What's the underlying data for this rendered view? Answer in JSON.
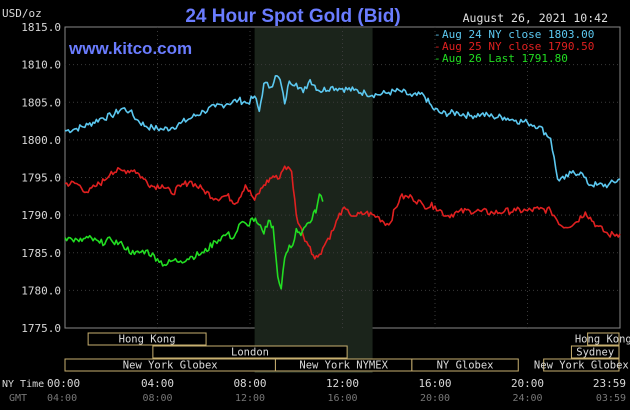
{
  "header": {
    "unit": "USD/oz",
    "title": "24 Hour Spot Gold (Bid)",
    "timestamp": "August 26, 2021 10:42",
    "website": "www.kitco.com"
  },
  "legend": [
    {
      "label": "Aug 24 NY close 1803.00",
      "color": "#5cc8f0"
    },
    {
      "label": "Aug 25 NY close 1790.50",
      "color": "#e02020"
    },
    {
      "label": "Aug 26 Last 1791.80",
      "color": "#22dd22"
    }
  ],
  "axis": {
    "y_ticks": [
      "1815.0",
      "1810.0",
      "1805.0",
      "1800.0",
      "1795.0",
      "1790.0",
      "1785.0",
      "1780.0",
      "1775.0"
    ],
    "x_ticks_ny": [
      "00:00",
      "04:00",
      "08:00",
      "12:00",
      "16:00",
      "20:00",
      "23:59"
    ],
    "x_ticks_gmt": [
      "04:00",
      "08:00",
      "12:00",
      "16:00",
      "20:00",
      "24:00",
      "03:59"
    ],
    "ny_time_label": "NY Time",
    "gmt_label": "GMT"
  },
  "sessions": [
    {
      "label": "Hong Kong",
      "start": 1.0,
      "end": 6.1,
      "row": 0
    },
    {
      "label": "Hong Kong",
      "start": 22.6,
      "end": 26.0,
      "row": 0
    },
    {
      "label": "London",
      "start": 3.8,
      "end": 12.2,
      "row": 1
    },
    {
      "label": "Sydney",
      "start": 21.9,
      "end": 26.0,
      "row": 1
    },
    {
      "label": "New York Globex",
      "start": 0.0,
      "end": 9.1,
      "row": 2
    },
    {
      "label": "New York NYMEX",
      "start": 9.1,
      "end": 15.0,
      "row": 2
    },
    {
      "label": "NY Globex",
      "start": 15.0,
      "end": 19.6,
      "row": 2
    },
    {
      "label": "New York Globex",
      "start": 20.7,
      "end": 26.0,
      "row": 2
    }
  ],
  "chart_data": {
    "type": "line",
    "title": "24 Hour Spot Gold (Bid)",
    "ylabel": "USD/oz",
    "xlabel": "NY Time",
    "xlim": [
      0,
      24
    ],
    "ylim": [
      1775,
      1815
    ],
    "nymex_session_hours": [
      8.2,
      13.3
    ],
    "series": [
      {
        "name": "Aug 24 NY close 1803.00",
        "color": "#5cc8f0",
        "x": [
          0,
          0.5,
          1,
          1.5,
          2,
          2.5,
          2.8,
          3.1,
          3.5,
          3.8,
          4.2,
          4.6,
          5,
          5.5,
          6,
          6.5,
          7,
          7.5,
          7.9,
          8.2,
          8.4,
          8.6,
          8.9,
          9.1,
          9.3,
          9.5,
          9.7,
          10,
          10.3,
          10.6,
          11,
          11.5,
          12,
          12.5,
          13,
          13.5,
          14,
          14.5,
          15,
          15.5,
          15.9,
          16.3,
          17,
          17.5,
          18,
          18.5,
          19,
          19.5,
          20,
          20.5,
          21,
          21.3,
          21.6,
          21.9,
          22.3,
          22.6,
          23,
          23.5,
          24
        ],
        "y": [
          1801.2,
          1801.5,
          1802.0,
          1802.8,
          1803.2,
          1804.2,
          1803.8,
          1802.7,
          1801.8,
          1801.6,
          1801.4,
          1801.6,
          1802.2,
          1803.0,
          1803.8,
          1804.4,
          1804.8,
          1805.3,
          1804.9,
          1805.8,
          1803.8,
          1807.5,
          1807.0,
          1808.5,
          1808.0,
          1804.8,
          1807.8,
          1807.5,
          1806.3,
          1808.0,
          1806.5,
          1807.0,
          1806.8,
          1806.6,
          1806.2,
          1806.0,
          1806.3,
          1806.5,
          1805.8,
          1806.0,
          1804.2,
          1803.5,
          1803.6,
          1803.2,
          1803.4,
          1803.1,
          1803.0,
          1802.6,
          1802.3,
          1801.8,
          1800.2,
          1794.8,
          1794.8,
          1795.6,
          1795.7,
          1794.2,
          1794.0,
          1794.0,
          1794.8
        ]
      },
      {
        "name": "Aug 25 NY close 1790.50",
        "color": "#e02020",
        "x": [
          0,
          0.5,
          1,
          1.3,
          1.7,
          2,
          2.5,
          3,
          3.4,
          3.8,
          4.2,
          4.6,
          5,
          5.4,
          6,
          6.5,
          7,
          7.4,
          7.8,
          8.2,
          8.6,
          9,
          9.2,
          9.5,
          9.8,
          10,
          10.3,
          10.6,
          10.8,
          11,
          11.3,
          11.6,
          11.8,
          12,
          12.3,
          12.6,
          13,
          13.5,
          14,
          14.5,
          15,
          15.5,
          16,
          16.5,
          17,
          17.5,
          18,
          18.5,
          19,
          19.5,
          20,
          20.5,
          21,
          21.5,
          22,
          22.5,
          23,
          23.5,
          24
        ],
        "y": [
          1794.2,
          1794.2,
          1793.0,
          1793.8,
          1794.6,
          1795.8,
          1795.9,
          1796.0,
          1794.8,
          1793.8,
          1794.0,
          1792.9,
          1793.8,
          1794.5,
          1793.3,
          1792.2,
          1792.6,
          1791.6,
          1794.0,
          1792.0,
          1794.0,
          1795.2,
          1794.8,
          1796.5,
          1795.8,
          1790.0,
          1787.3,
          1785.8,
          1784.2,
          1784.8,
          1786.5,
          1788.0,
          1789.6,
          1790.8,
          1790.2,
          1789.9,
          1790.3,
          1789.8,
          1788.7,
          1792.4,
          1792.4,
          1791.3,
          1791.2,
          1789.9,
          1790.4,
          1790.6,
          1790.5,
          1790.3,
          1790.5,
          1790.6,
          1790.6,
          1790.8,
          1790.6,
          1788.5,
          1788.8,
          1790.4,
          1788.6,
          1787.4,
          1787.5
        ]
      },
      {
        "name": "Aug 26 Last 1791.80",
        "color": "#22dd22",
        "x": [
          0,
          0.3,
          0.6,
          1,
          1.5,
          2,
          2.5,
          3,
          3.5,
          4,
          4.3,
          4.7,
          5,
          5.5,
          6,
          6.5,
          7,
          7.3,
          7.6,
          7.9,
          8.1,
          8.3,
          8.6,
          8.8,
          9,
          9.2,
          9.35,
          9.5,
          9.7,
          9.85,
          10,
          10.2,
          10.4,
          10.6,
          10.75,
          10.85,
          11.0,
          11.15
        ],
        "y": [
          1787.0,
          1786.8,
          1786.5,
          1787.0,
          1786.3,
          1786.7,
          1786.0,
          1784.8,
          1785.3,
          1784.2,
          1783.4,
          1784.0,
          1783.9,
          1784.5,
          1785.0,
          1786.5,
          1787.5,
          1787.0,
          1789.0,
          1788.6,
          1789.6,
          1789.0,
          1787.5,
          1789.3,
          1788.5,
          1781.8,
          1780.2,
          1784.3,
          1786.0,
          1786.0,
          1788.2,
          1787.3,
          1788.5,
          1789.0,
          1790.4,
          1790.3,
          1792.8,
          1791.8
        ]
      }
    ]
  }
}
